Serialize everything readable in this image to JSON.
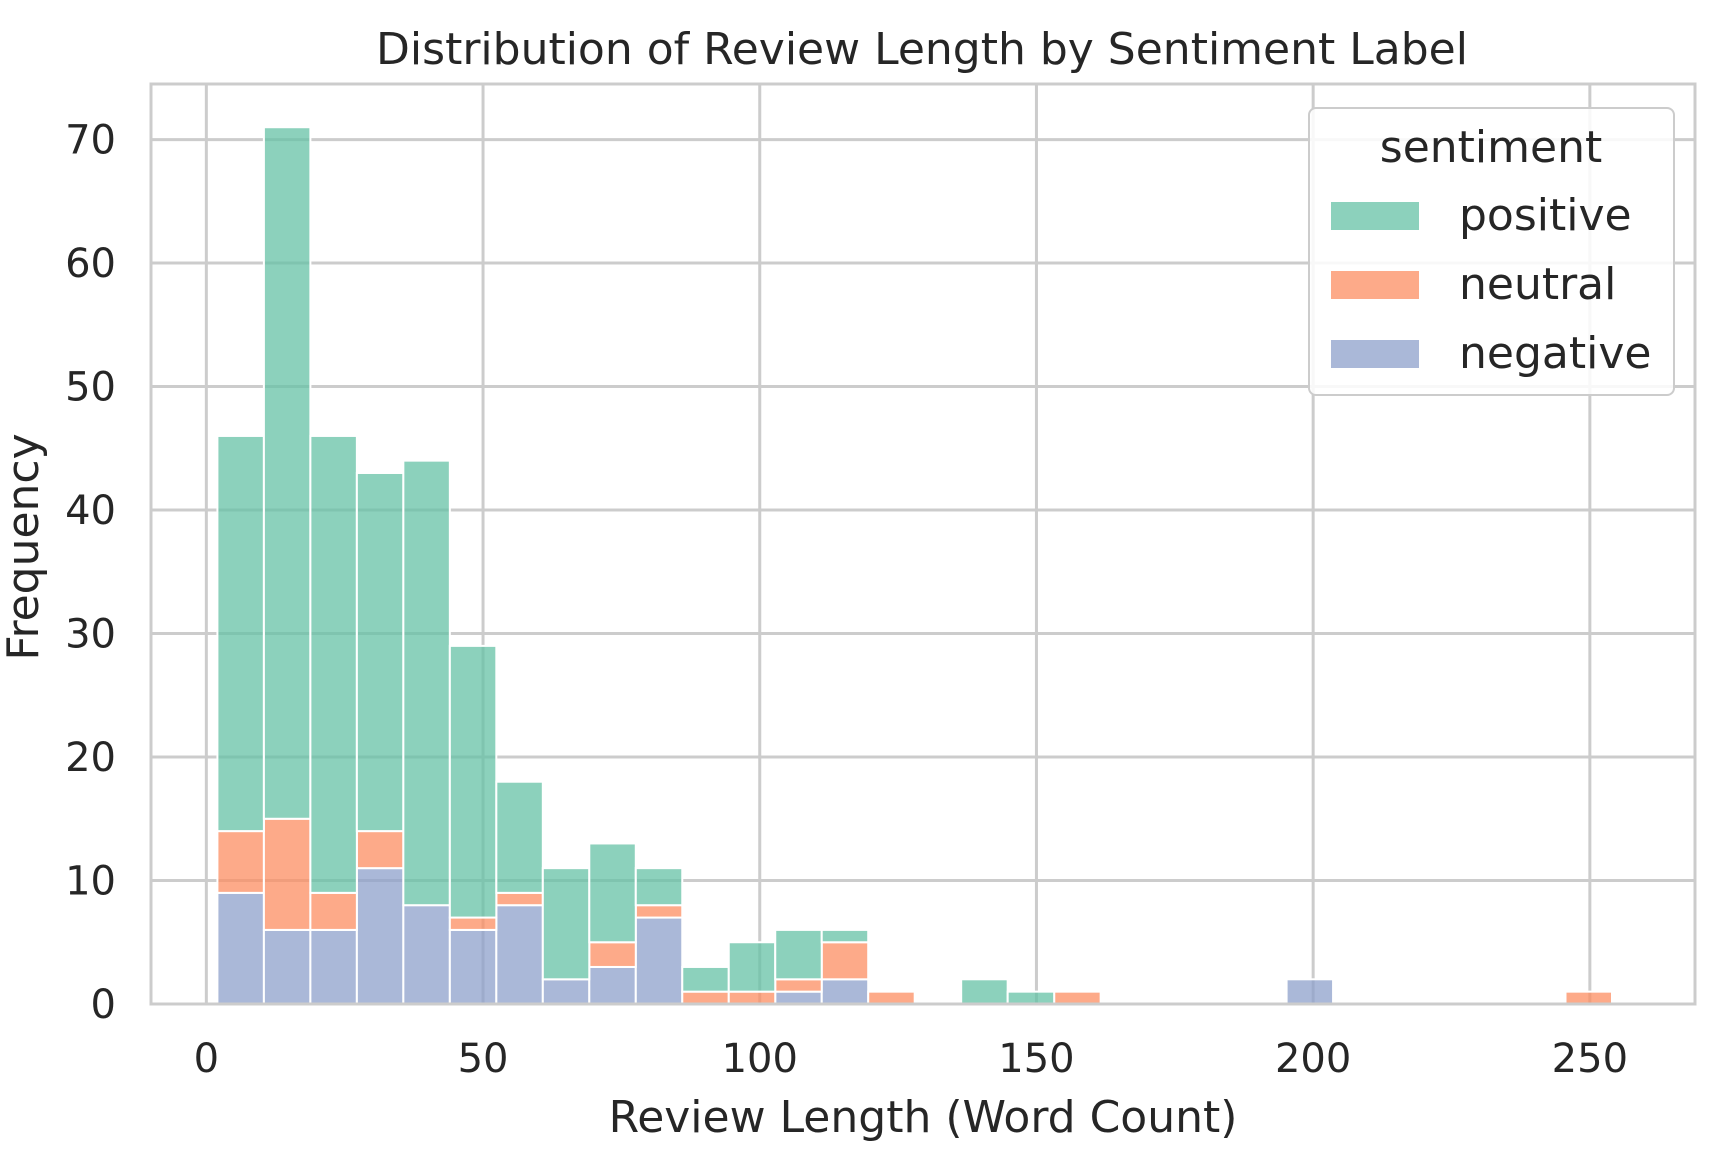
{
  "chart_data": {
    "type": "bar",
    "subtype": "stacked-histogram",
    "title": "Distribution of Review Length by Sentiment Label",
    "xlabel": "Review Length (Word Count)",
    "ylabel": "Frequency",
    "xlim": [
      -10,
      269
    ],
    "ylim": [
      0,
      74.5
    ],
    "xticks": [
      0,
      50,
      100,
      150,
      200,
      250
    ],
    "yticks": [
      0,
      10,
      20,
      30,
      40,
      50,
      60,
      70
    ],
    "grid": true,
    "legend": {
      "title": "sentiment",
      "position": "top-right"
    },
    "bin_edges": [
      2.0,
      10.4,
      18.8,
      27.2,
      35.6,
      44.0,
      52.4,
      60.8,
      69.2,
      77.6,
      86.0,
      94.4,
      102.8,
      111.2,
      119.6,
      128.0,
      136.4,
      144.8,
      153.2,
      161.6,
      170.0,
      178.4,
      186.8,
      195.2,
      203.6,
      212.0,
      220.4,
      228.8,
      237.2,
      245.6,
      254.0
    ],
    "series": [
      {
        "name": "negative",
        "color": "#8da0cb",
        "values": [
          9,
          6,
          6,
          11,
          8,
          6,
          8,
          2,
          3,
          7,
          0,
          0,
          1,
          2,
          0,
          0,
          0,
          0,
          0,
          0,
          0,
          0,
          0,
          2,
          0,
          0,
          0,
          0,
          0,
          0
        ]
      },
      {
        "name": "neutral",
        "color": "#fc8d62",
        "values": [
          5,
          9,
          3,
          3,
          0,
          1,
          1,
          0,
          2,
          1,
          1,
          1,
          1,
          3,
          1,
          0,
          0,
          0,
          1,
          0,
          0,
          0,
          0,
          0,
          0,
          0,
          0,
          0,
          0,
          1
        ]
      },
      {
        "name": "positive",
        "color": "#66c2a5",
        "values": [
          32,
          56,
          37,
          29,
          36,
          22,
          9,
          9,
          8,
          3,
          2,
          4,
          4,
          1,
          0,
          0,
          2,
          1,
          0,
          0,
          0,
          0,
          0,
          0,
          0,
          0,
          0,
          0,
          0,
          0
        ]
      }
    ],
    "legend_order": [
      "positive",
      "neutral",
      "negative"
    ]
  }
}
